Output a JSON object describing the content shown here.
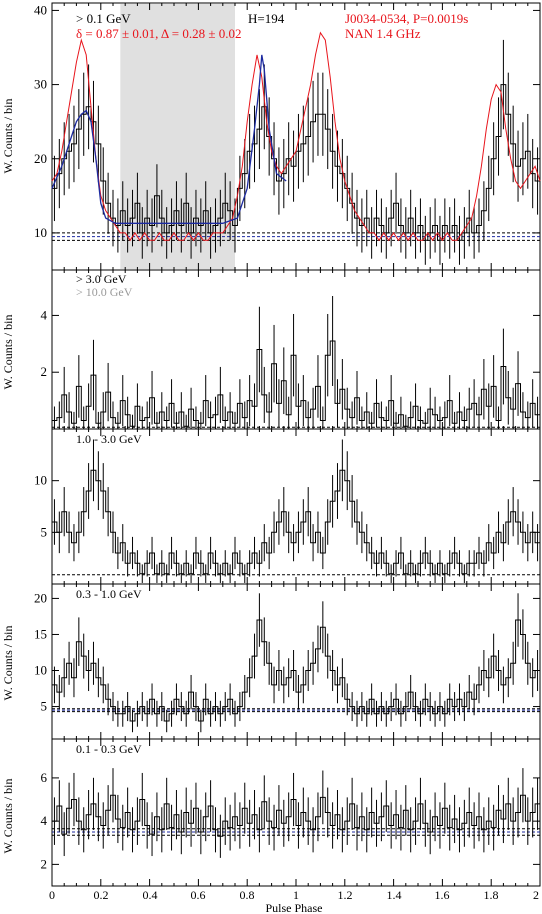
{
  "figure": {
    "xlabel": "Pulse Phase",
    "x_ticks": [
      "0",
      "0.2",
      "0.4",
      "0.6",
      "0.8",
      "1",
      "1.2",
      "1.4",
      "1.6",
      "1.8",
      "2"
    ],
    "colors": {
      "black": "#000000",
      "red": "#e8141b",
      "blue": "#1c2aa0",
      "shade": "#e0e0e0",
      "gray_label": "#9a9a9a"
    }
  },
  "chart_data": [
    {
      "type": "line",
      "panel": "top",
      "ylabel": "W. Counts / bin",
      "y_ticks": [
        "10",
        "20",
        "30",
        "40"
      ],
      "ylim": [
        5,
        41
      ],
      "xlim": [
        0,
        2
      ],
      "energy_label": "> 0.1 GeV",
      "h_label": "H=194",
      "stats_label": "δ = 0.87 ± 0.01, Δ = 0.28 ± 0.02",
      "source_label": "J0034-0534, P=0.0019s",
      "radio_label": "NAN 1.4 GHz",
      "shaded_off_pulse": [
        0.28,
        0.75
      ],
      "background_levels": [
        9.0,
        9.5,
        10.0
      ],
      "series": [
        {
          "name": "gamma",
          "color": "#000000",
          "x": [
            0.0,
            0.02,
            0.04,
            0.06,
            0.08,
            0.1,
            0.12,
            0.14,
            0.16,
            0.18,
            0.2,
            0.22,
            0.24,
            0.26,
            0.28,
            0.3,
            0.32,
            0.34,
            0.36,
            0.38,
            0.4,
            0.42,
            0.44,
            0.46,
            0.48,
            0.5,
            0.52,
            0.54,
            0.56,
            0.58,
            0.6,
            0.62,
            0.64,
            0.66,
            0.68,
            0.7,
            0.72,
            0.74,
            0.76,
            0.78,
            0.8,
            0.82,
            0.84,
            0.86,
            0.88,
            0.9,
            0.92,
            0.94,
            0.96,
            0.98,
            1.0,
            1.02,
            1.04,
            1.06,
            1.08,
            1.1,
            1.12,
            1.14,
            1.16,
            1.18,
            1.2,
            1.22,
            1.24,
            1.26,
            1.28,
            1.3,
            1.32,
            1.34,
            1.36,
            1.38,
            1.4,
            1.42,
            1.44,
            1.46,
            1.48,
            1.5,
            1.52,
            1.54,
            1.56,
            1.58,
            1.6,
            1.62,
            1.64,
            1.66,
            1.68,
            1.7,
            1.72,
            1.74,
            1.76,
            1.78,
            1.8,
            1.82,
            1.84,
            1.86,
            1.88,
            1.9,
            1.92,
            1.94,
            1.96,
            1.98
          ],
          "values": [
            16,
            18,
            20,
            21,
            22,
            24,
            26,
            27,
            25,
            22,
            17,
            14,
            12,
            11,
            13,
            11,
            12,
            14,
            10,
            12,
            11,
            15,
            12,
            10,
            11,
            13,
            11,
            14,
            10,
            12,
            11,
            13,
            10,
            11,
            12,
            14,
            13,
            11,
            16,
            18,
            21,
            22,
            24,
            27,
            23,
            20,
            17,
            18,
            20,
            19,
            21,
            22,
            23,
            25,
            26,
            26,
            24,
            21,
            19,
            18,
            16,
            14,
            12,
            11,
            12,
            10,
            12,
            11,
            10,
            12,
            14,
            11,
            10,
            12,
            10,
            11,
            9,
            10,
            11,
            9,
            11,
            10,
            11,
            9,
            10,
            12,
            10,
            11,
            13,
            16,
            20,
            23,
            30,
            26,
            22,
            19,
            20,
            21,
            18,
            17
          ]
        },
        {
          "name": "radio",
          "color": "#e8141b",
          "x": [
            0.0,
            0.02,
            0.04,
            0.06,
            0.08,
            0.1,
            0.12,
            0.14,
            0.16,
            0.18,
            0.2,
            0.22,
            0.24,
            0.26,
            0.28,
            0.3,
            0.32,
            0.34,
            0.36,
            0.38,
            0.4,
            0.42,
            0.44,
            0.46,
            0.48,
            0.5,
            0.52,
            0.54,
            0.56,
            0.58,
            0.6,
            0.62,
            0.64,
            0.66,
            0.68,
            0.7,
            0.72,
            0.74,
            0.76,
            0.78,
            0.8,
            0.82,
            0.84,
            0.86,
            0.88,
            0.9,
            0.92,
            0.94,
            0.96,
            0.98,
            1.0,
            1.02,
            1.04,
            1.06,
            1.08,
            1.1,
            1.12,
            1.14,
            1.16,
            1.18,
            1.2,
            1.22,
            1.24,
            1.26,
            1.28,
            1.3,
            1.32,
            1.34,
            1.36,
            1.38,
            1.4,
            1.42,
            1.44,
            1.46,
            1.48,
            1.5,
            1.52,
            1.54,
            1.56,
            1.58,
            1.6,
            1.62,
            1.64,
            1.66,
            1.68,
            1.7,
            1.72,
            1.74,
            1.76,
            1.78,
            1.8,
            1.82,
            1.84,
            1.86,
            1.88,
            1.9,
            1.92,
            1.94,
            1.96,
            1.98,
            2.0
          ],
          "values": [
            17,
            18,
            21,
            25,
            29,
            33,
            36,
            34,
            27,
            20,
            15,
            13,
            12,
            11,
            10,
            10,
            9,
            10,
            9,
            10,
            9,
            9,
            10,
            9,
            9,
            10,
            9,
            9,
            10,
            9,
            10,
            9,
            9,
            10,
            10,
            10,
            11,
            12,
            15,
            19,
            25,
            30,
            34,
            31,
            25,
            21,
            19,
            18,
            19,
            20,
            21,
            24,
            27,
            30,
            34,
            37,
            36,
            31,
            25,
            20,
            17,
            15,
            13,
            12,
            11,
            10,
            10,
            9,
            10,
            9,
            10,
            9,
            10,
            9,
            10,
            9,
            9,
            10,
            9,
            10,
            9,
            10,
            9,
            9,
            10,
            11,
            12,
            15,
            19,
            24,
            28,
            30,
            29,
            24,
            20,
            17,
            16,
            17,
            18,
            19,
            17
          ]
        },
        {
          "name": "fit",
          "color": "#1c2aa0",
          "x": [
            0.0,
            0.04,
            0.08,
            0.1,
            0.12,
            0.14,
            0.16,
            0.18,
            0.2,
            0.22,
            0.26,
            0.3,
            0.5,
            0.7,
            0.76,
            0.8,
            0.83,
            0.85,
            0.86,
            0.87,
            0.89,
            0.92,
            0.96
          ],
          "values": [
            16,
            19,
            23,
            25,
            26,
            26.5,
            25,
            20,
            14,
            12,
            11.3,
            11.3,
            11.3,
            11.3,
            12,
            16,
            24,
            30,
            34,
            32,
            24,
            18,
            17
          ]
        }
      ]
    },
    {
      "type": "line",
      "panel": "3 GeV",
      "ylabel": "W. Counts / bin",
      "y_ticks": [
        "2",
        "4"
      ],
      "ylim": [
        0,
        5.6
      ],
      "energy_label": "> 3.0 GeV",
      "energy_label_2": "> 10.0 GeV",
      "background_levels": [
        0.06
      ],
      "values": [
        0.3,
        0.4,
        1.2,
        0.6,
        0.2,
        1.5,
        0.3,
        0.8,
        1.9,
        0.2,
        0.6,
        1.3,
        0.4,
        0.2,
        1.0,
        0.5,
        0.1,
        0.8,
        0.3,
        0.4,
        1.1,
        0.2,
        0.6,
        0.3,
        0.9,
        0.2,
        0.6,
        0.1,
        0.7,
        0.3,
        0.2,
        1.0,
        0.4,
        0.5,
        1.2,
        0.3,
        0.6,
        0.2,
        0.9,
        0.4,
        1.0,
        0.8,
        2.8,
        1.2,
        0.6,
        2.3,
        0.9,
        1.7,
        0.5,
        2.6,
        0.8,
        1.0,
        0.4,
        0.7,
        1.5,
        0.3,
        2.6,
        3.1,
        0.9,
        1.4,
        0.7,
        0.4,
        1.1,
        0.3,
        0.6,
        0.2,
        0.9,
        0.4,
        0.3,
        1.0,
        0.2,
        0.5,
        0.1,
        0.4,
        0.8,
        0.3,
        0.2,
        0.7,
        0.5,
        0.3,
        0.4,
        1.0,
        0.2,
        0.6,
        0.3,
        0.7,
        0.9,
        0.5,
        1.4,
        0.8,
        1.5,
        0.3,
        2.2,
        1.1,
        0.7,
        1.6,
        0.6,
        0.4,
        0.9,
        0.5
      ]
    },
    {
      "type": "line",
      "panel": "1-3 GeV",
      "ylabel": "",
      "y_ticks": [
        "5",
        "10"
      ],
      "ylim": [
        0,
        15
      ],
      "energy_label": "1.0 - 3.0 GeV",
      "background_levels": [
        0.9
      ],
      "values": [
        6,
        5,
        7,
        5,
        4,
        5,
        7,
        9,
        11,
        10,
        9,
        7,
        5,
        3,
        4,
        2,
        3,
        2,
        1,
        2,
        3,
        1,
        2,
        1,
        3,
        2,
        1,
        2,
        1,
        3,
        2,
        1,
        3,
        2,
        1,
        2,
        1,
        3,
        2,
        1,
        2,
        3,
        2,
        4,
        3,
        5,
        6,
        7,
        5,
        4,
        5,
        6,
        7,
        4,
        5,
        3,
        6,
        8,
        9,
        11,
        10,
        8,
        6,
        5,
        4,
        3,
        2,
        3,
        2,
        1,
        2,
        3,
        1,
        2,
        1,
        2,
        3,
        2,
        1,
        2,
        1,
        2,
        3,
        2,
        1,
        2,
        2,
        3,
        2,
        4,
        3,
        5,
        4,
        6,
        7,
        6,
        5,
        4,
        5,
        4
      ]
    },
    {
      "type": "line",
      "panel": "0.3-1 GeV",
      "ylabel": "W. Counts / bin",
      "y_ticks": [
        "5",
        "10",
        "15",
        "20"
      ],
      "ylim": [
        0.5,
        22
      ],
      "energy_label": "0.3 - 1.0 GeV",
      "background_levels": [
        4.3,
        4.5,
        4.7
      ],
      "values": [
        8,
        7,
        9,
        11,
        9,
        14,
        12,
        10,
        11,
        9,
        8,
        6,
        5,
        4,
        4,
        5,
        3,
        4,
        5,
        4,
        6,
        4,
        5,
        3,
        4,
        6,
        5,
        4,
        7,
        5,
        3,
        6,
        4,
        5,
        4,
        5,
        6,
        4,
        5,
        7,
        9,
        12,
        17,
        14,
        11,
        8,
        10,
        8,
        9,
        10,
        7,
        8,
        10,
        11,
        13,
        16,
        12,
        10,
        8,
        9,
        6,
        5,
        4,
        5,
        4,
        6,
        4,
        5,
        4,
        5,
        6,
        4,
        5,
        7,
        5,
        4,
        6,
        5,
        4,
        5,
        4,
        6,
        5,
        6,
        5,
        7,
        6,
        8,
        10,
        9,
        12,
        10,
        8,
        9,
        11,
        17,
        15,
        11,
        9,
        10
      ]
    },
    {
      "type": "line",
      "panel": "0.1-0.3 GeV",
      "ylabel": "W. Counts / bin",
      "y_ticks": [
        "2",
        "4",
        "6"
      ],
      "ylim": [
        1,
        7.8
      ],
      "energy_label": "0.1 - 0.3 GeV",
      "background_levels": [
        3.35,
        3.5,
        3.65
      ],
      "values": [
        4.0,
        4.7,
        3.4,
        4.6,
        5.0,
        4.0,
        3.6,
        4.3,
        4.8,
        4.2,
        3.8,
        4.5,
        5.2,
        4.1,
        3.7,
        4.4,
        3.6,
        4.0,
        5.0,
        3.8,
        3.4,
        4.2,
        3.6,
        4.8,
        3.7,
        4.3,
        3.5,
        4.4,
        3.9,
        4.6,
        3.5,
        4.2,
        4.7,
        3.6,
        3.3,
        4.0,
        3.7,
        4.2,
        3.8,
        4.6,
        3.9,
        4.3,
        3.6,
        4.9,
        4.0,
        3.7,
        4.5,
        3.9,
        4.2,
        5.0,
        3.8,
        4.4,
        4.0,
        3.6,
        4.2,
        5.1,
        4.4,
        3.8,
        4.3,
        3.6,
        4.0,
        4.8,
        3.7,
        4.2,
        3.6,
        4.4,
        3.9,
        4.2,
        4.7,
        3.8,
        4.3,
        3.7,
        4.5,
        3.6,
        4.0,
        4.8,
        3.9,
        3.5,
        4.2,
        3.8,
        4.6,
        3.7,
        4.1,
        3.6,
        3.9,
        4.4,
        3.8,
        4.2,
        3.6,
        4.0,
        3.7,
        4.5,
        4.1,
        4.8,
        4.0,
        4.4,
        5.2,
        4.0,
        4.4,
        4.8
      ]
    }
  ]
}
